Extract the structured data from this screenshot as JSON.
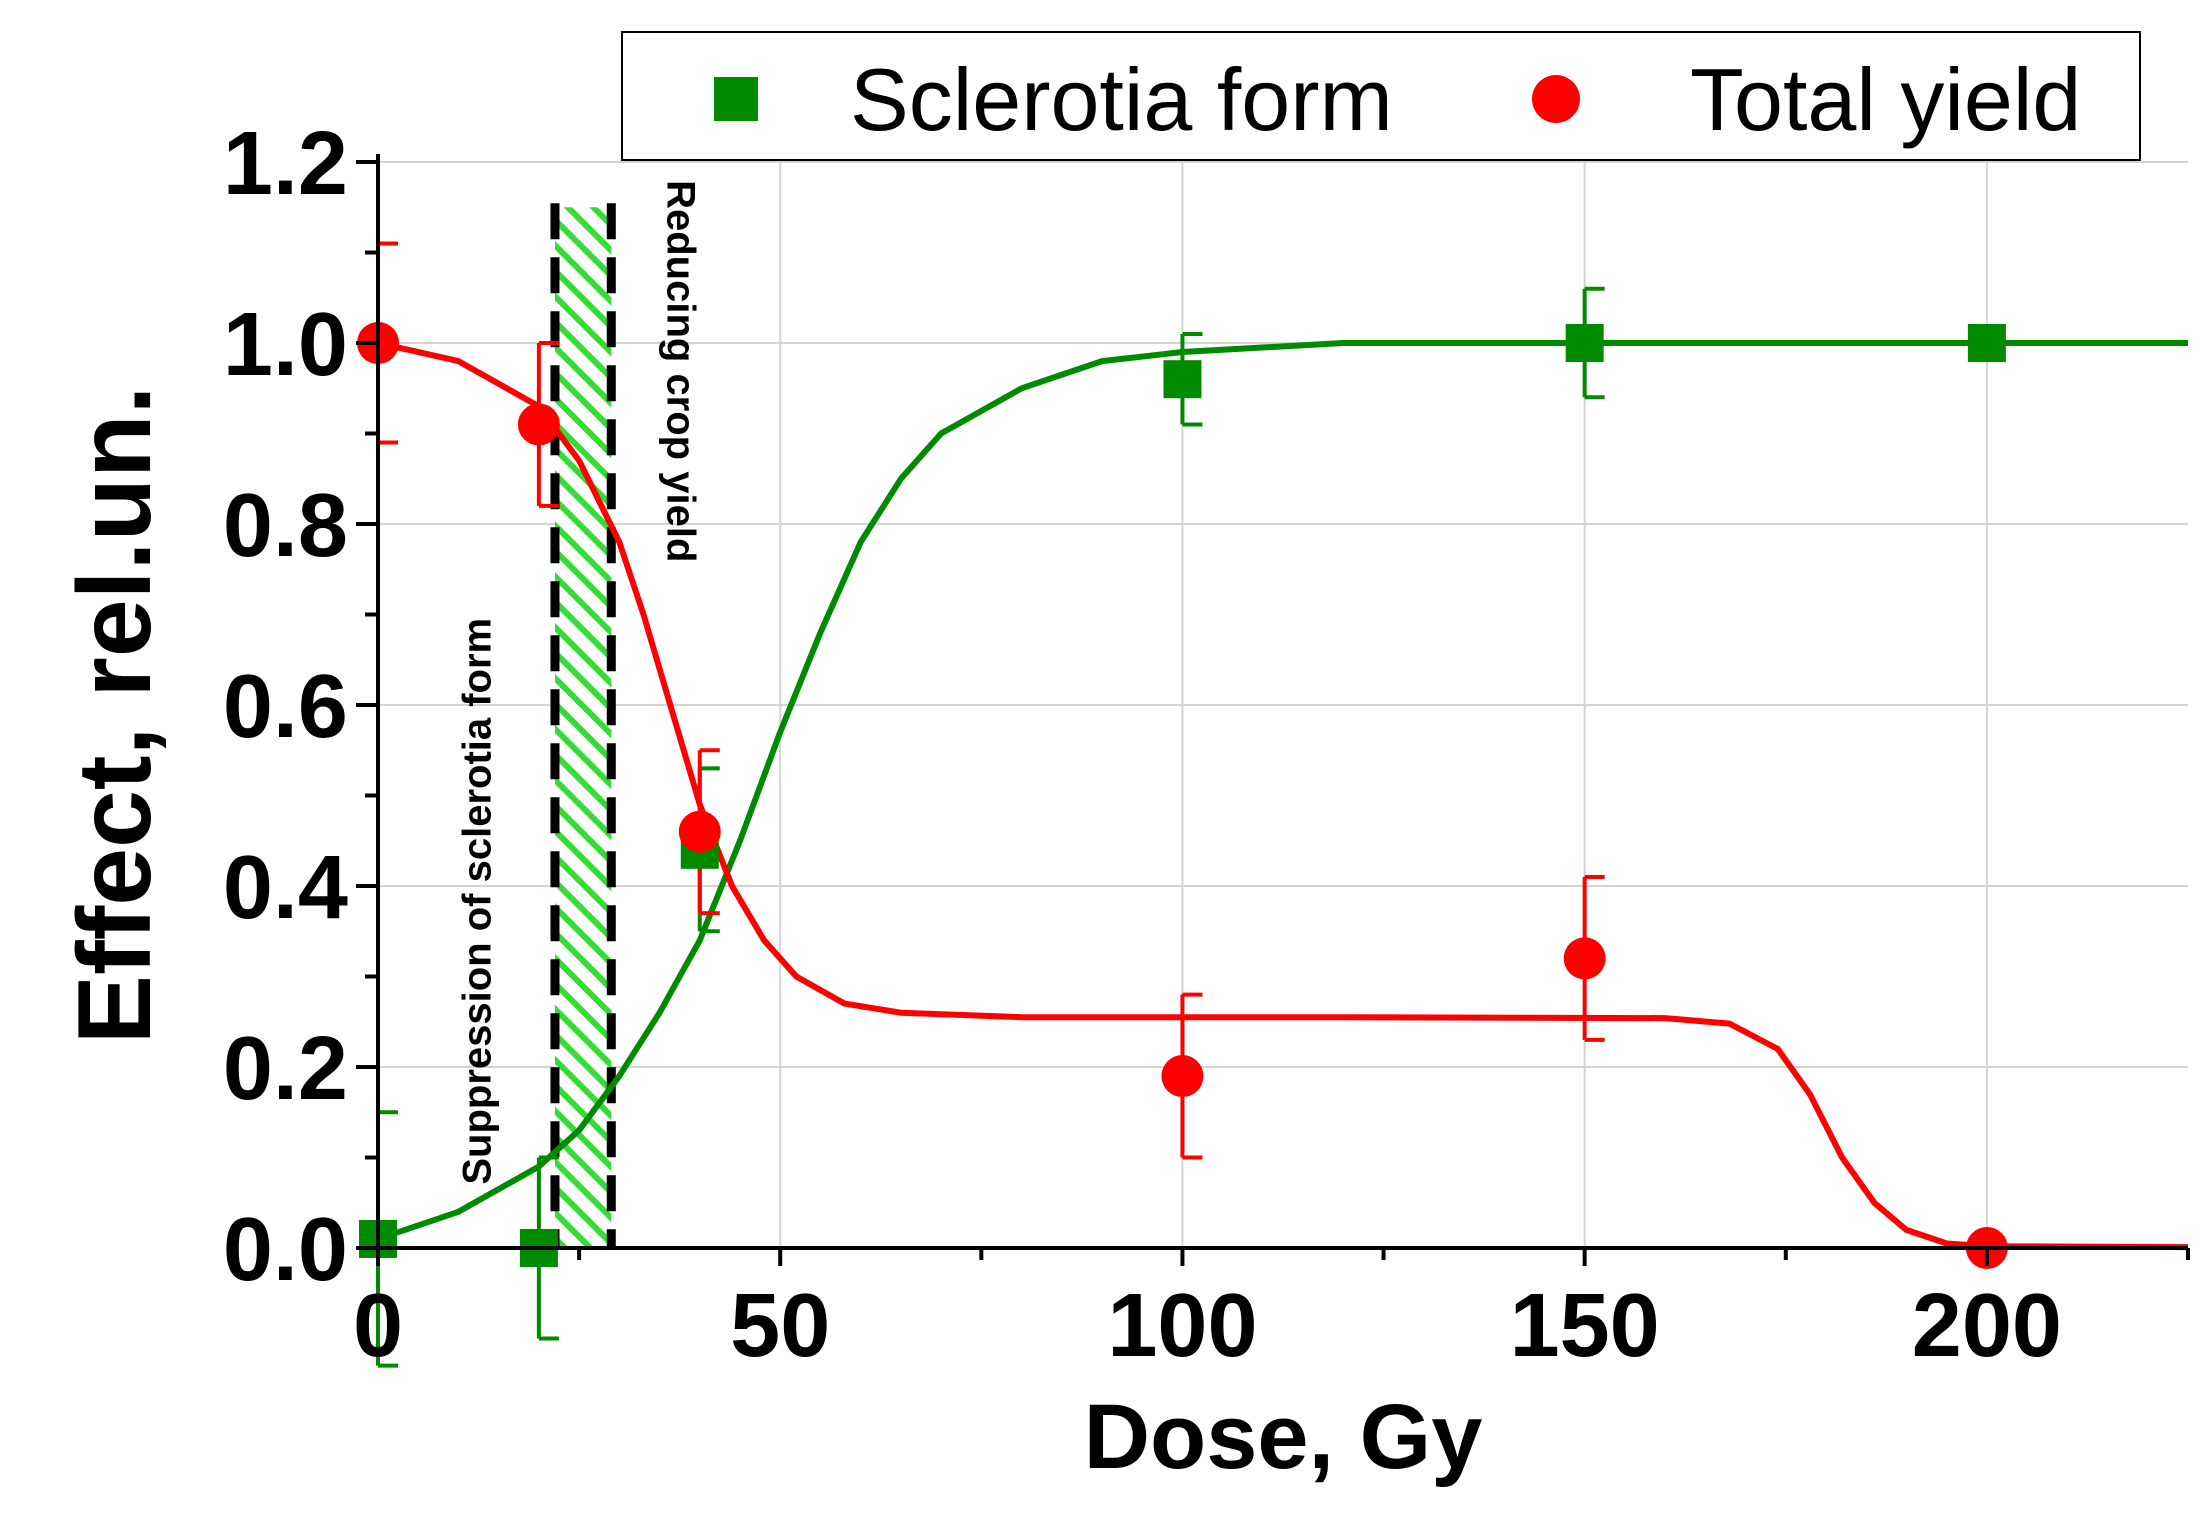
{
  "chart_data": {
    "type": "scatter",
    "xlabel": "Dose, Gy",
    "ylabel": "Effect, rel.un.",
    "xlim": [
      0,
      225
    ],
    "ylim": [
      0,
      1.2
    ],
    "x_ticks": [
      0,
      50,
      100,
      150,
      200
    ],
    "x_tick_labels": [
      "0",
      "50",
      "100",
      "150",
      "200"
    ],
    "y_ticks": [
      0,
      0.2,
      0.4,
      0.6,
      0.8,
      1.0,
      1.2
    ],
    "y_tick_labels": [
      "0.0",
      "0.2",
      "0.4",
      "0.6",
      "0.8",
      "1.0",
      "1.2"
    ],
    "grid": true,
    "legend_position": "top-right",
    "series": [
      {
        "name": "Sclerotia form",
        "color": "#008a00",
        "marker": "square",
        "x": [
          0,
          20,
          40,
          100,
          150,
          200
        ],
        "y": [
          0.01,
          0.0,
          0.44,
          0.96,
          1.0,
          1.0
        ],
        "error": [
          0.14,
          0.1,
          0.09,
          0.05,
          0.06,
          0.0
        ],
        "fit_curve": [
          [
            0,
            0.01
          ],
          [
            10,
            0.04
          ],
          [
            20,
            0.09
          ],
          [
            25,
            0.13
          ],
          [
            30,
            0.19
          ],
          [
            35,
            0.26
          ],
          [
            40,
            0.34
          ],
          [
            45,
            0.45
          ],
          [
            50,
            0.57
          ],
          [
            55,
            0.68
          ],
          [
            60,
            0.78
          ],
          [
            65,
            0.85
          ],
          [
            70,
            0.9
          ],
          [
            80,
            0.95
          ],
          [
            90,
            0.98
          ],
          [
            100,
            0.99
          ],
          [
            120,
            1.0
          ],
          [
            160,
            1.0
          ],
          [
            225,
            1.0
          ]
        ]
      },
      {
        "name": "Total yield",
        "color": "#ff0000",
        "marker": "circle",
        "x": [
          0,
          20,
          40,
          100,
          150,
          200
        ],
        "y": [
          1.0,
          0.91,
          0.46,
          0.19,
          0.32,
          0.0
        ],
        "error": [
          0.11,
          0.09,
          0.09,
          0.09,
          0.09,
          0.0
        ],
        "fit_curve": [
          [
            0,
            1.0
          ],
          [
            10,
            0.98
          ],
          [
            20,
            0.93
          ],
          [
            25,
            0.87
          ],
          [
            30,
            0.78
          ],
          [
            33,
            0.7
          ],
          [
            36,
            0.61
          ],
          [
            40,
            0.49
          ],
          [
            44,
            0.4
          ],
          [
            48,
            0.34
          ],
          [
            52,
            0.3
          ],
          [
            58,
            0.27
          ],
          [
            65,
            0.26
          ],
          [
            80,
            0.255
          ],
          [
            120,
            0.255
          ],
          [
            160,
            0.254
          ],
          [
            168,
            0.248
          ],
          [
            174,
            0.22
          ],
          [
            178,
            0.17
          ],
          [
            182,
            0.1
          ],
          [
            186,
            0.05
          ],
          [
            190,
            0.02
          ],
          [
            195,
            0.005
          ],
          [
            200,
            0.002
          ],
          [
            225,
            0.001
          ]
        ]
      }
    ],
    "band": {
      "x_start": 22,
      "x_end": 29,
      "y_top": 1.15,
      "fill": "#33dd33"
    },
    "annotations": [
      {
        "text": "Suppression of sclerotia form",
        "x": 14,
        "y": 0.07,
        "rotation": -90
      },
      {
        "text": "Reducing crop yield",
        "x": 36,
        "y": 1.18,
        "rotation": 90
      }
    ]
  }
}
